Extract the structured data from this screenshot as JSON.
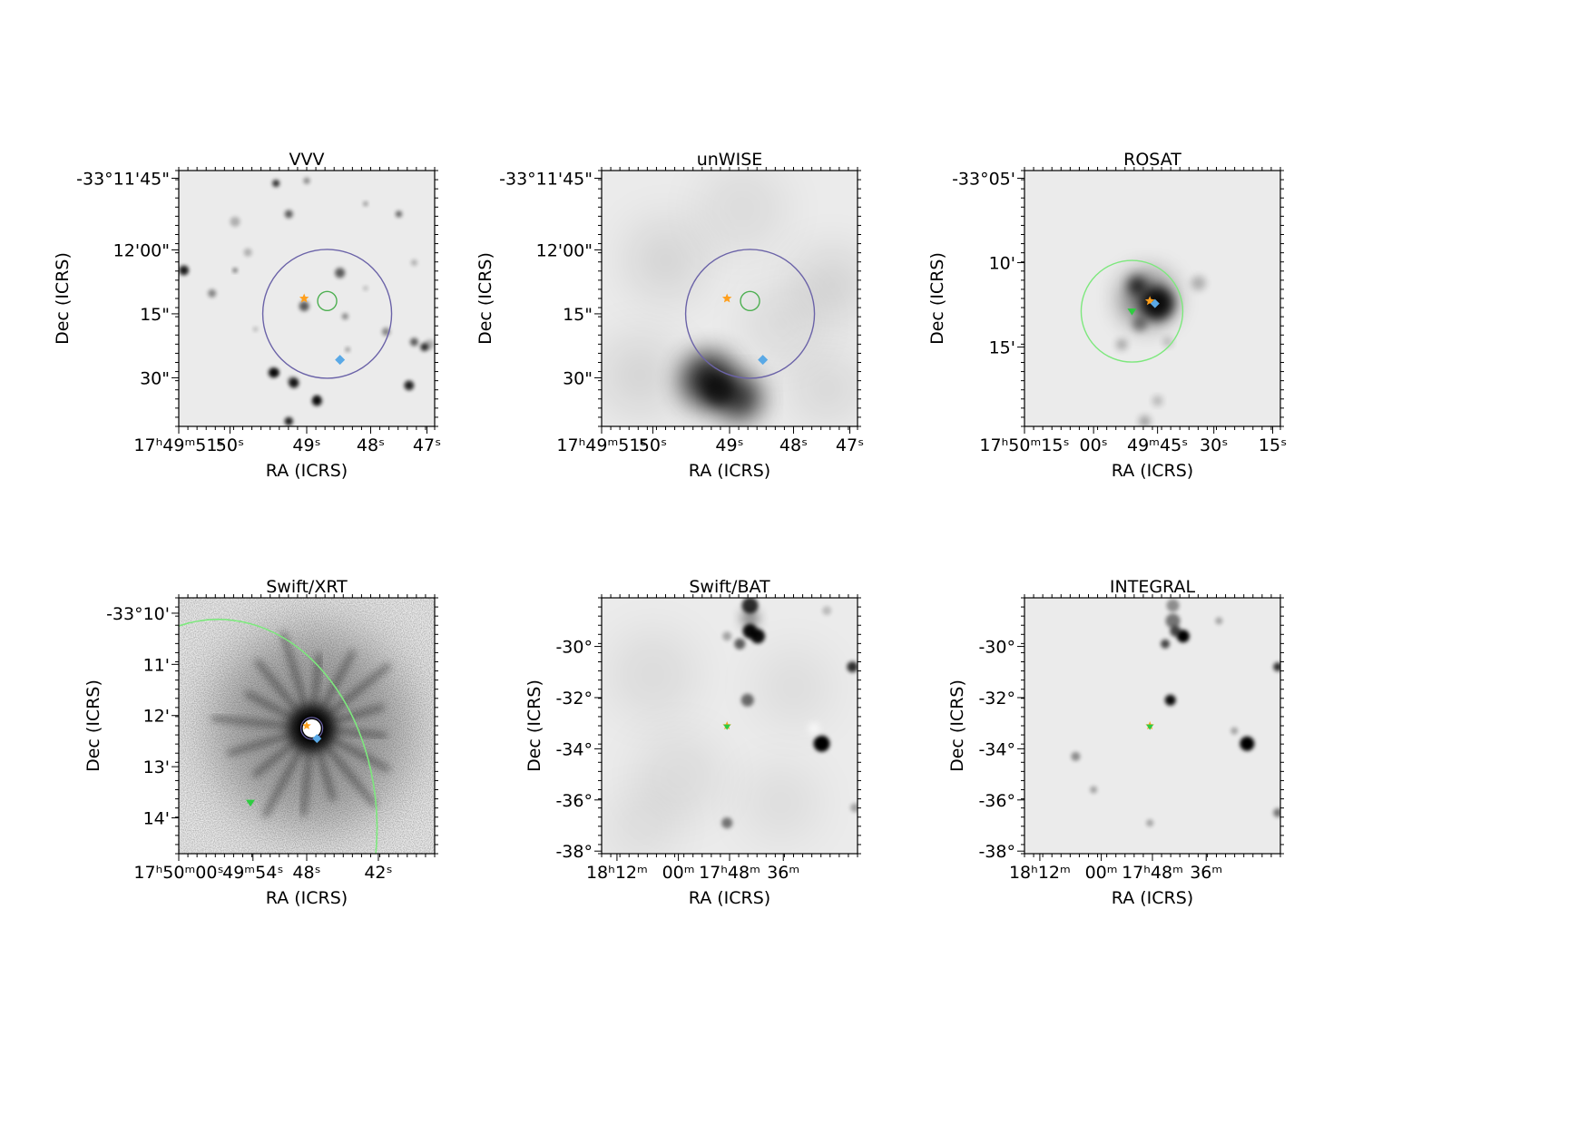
{
  "figure": {
    "background": "#ffffff",
    "panel_background": "#ebebeb",
    "marker_colors": {
      "star": "#ff9f1c",
      "diamond": "#5aa9e6",
      "triangle": "#2ecc40",
      "ring_purple": "#6b63a8",
      "ring_green": "#4caf50",
      "ring_lightgreen": "#7de87d"
    }
  },
  "chart_data": [
    {
      "type": "image",
      "title": "VVV",
      "xlabel": "RA (ICRS)",
      "ylabel": "Dec (ICRS)",
      "xticks": [
        "17ʰ49ᵐ51ˢ",
        "50ˢ",
        "49ˢ",
        "48ˢ",
        "47ˢ"
      ],
      "yticks": [
        "-33°11'45\"",
        "12'00\"",
        "15\"",
        "30\""
      ],
      "markers": [
        "star",
        "diamond"
      ],
      "regions": [
        "purple-circle",
        "green-circle"
      ]
    },
    {
      "type": "image",
      "title": "unWISE",
      "xlabel": "RA (ICRS)",
      "ylabel": "Dec (ICRS)",
      "xticks": [
        "17ʰ49ᵐ51ˢ",
        "50ˢ",
        "49ˢ",
        "48ˢ",
        "47ˢ"
      ],
      "yticks": [
        "-33°11'45\"",
        "12'00\"",
        "15\"",
        "30\""
      ],
      "markers": [
        "star",
        "diamond"
      ],
      "regions": [
        "purple-circle",
        "green-circle"
      ]
    },
    {
      "type": "image",
      "title": "ROSAT",
      "xlabel": "RA (ICRS)",
      "ylabel": "Dec (ICRS)",
      "xticks": [
        "17ʰ50ᵐ15ˢ",
        "00ˢ",
        "49ᵐ45ˢ",
        "30ˢ",
        "15ˢ"
      ],
      "yticks": [
        "-33°05'",
        "10'",
        "15'"
      ],
      "markers": [
        "star",
        "diamond",
        "triangle"
      ],
      "regions": [
        "lightgreen-circle"
      ]
    },
    {
      "type": "image",
      "title": "Swift/XRT",
      "xlabel": "RA (ICRS)",
      "ylabel": "Dec (ICRS)",
      "xticks": [
        "17ʰ50ᵐ00ˢ",
        "49ᵐ54ˢ",
        "48ˢ",
        "42ˢ"
      ],
      "yticks": [
        "-33°10'",
        "11'",
        "12'",
        "13'",
        "14'"
      ],
      "markers": [
        "star",
        "diamond",
        "triangle"
      ],
      "regions": [
        "lightgreen-arc",
        "purple-circle"
      ]
    },
    {
      "type": "image",
      "title": "Swift/BAT",
      "xlabel": "RA (ICRS)",
      "ylabel": "Dec (ICRS)",
      "xticks": [
        "18ʰ12ᵐ",
        "00ᵐ",
        "17ʰ48ᵐ",
        "36ᵐ"
      ],
      "yticks": [
        "-30°",
        "-32°",
        "-34°",
        "-36°",
        "-38°"
      ],
      "markers": [
        "star",
        "triangle"
      ],
      "regions": []
    },
    {
      "type": "image",
      "title": "INTEGRAL",
      "xlabel": "RA (ICRS)",
      "ylabel": "Dec (ICRS)",
      "xticks": [
        "18ʰ12ᵐ",
        "00ᵐ",
        "17ʰ48ᵐ",
        "36ᵐ"
      ],
      "yticks": [
        "-30°",
        "-32°",
        "-34°",
        "-36°",
        "-38°"
      ],
      "markers": [
        "star",
        "triangle"
      ],
      "regions": []
    }
  ]
}
